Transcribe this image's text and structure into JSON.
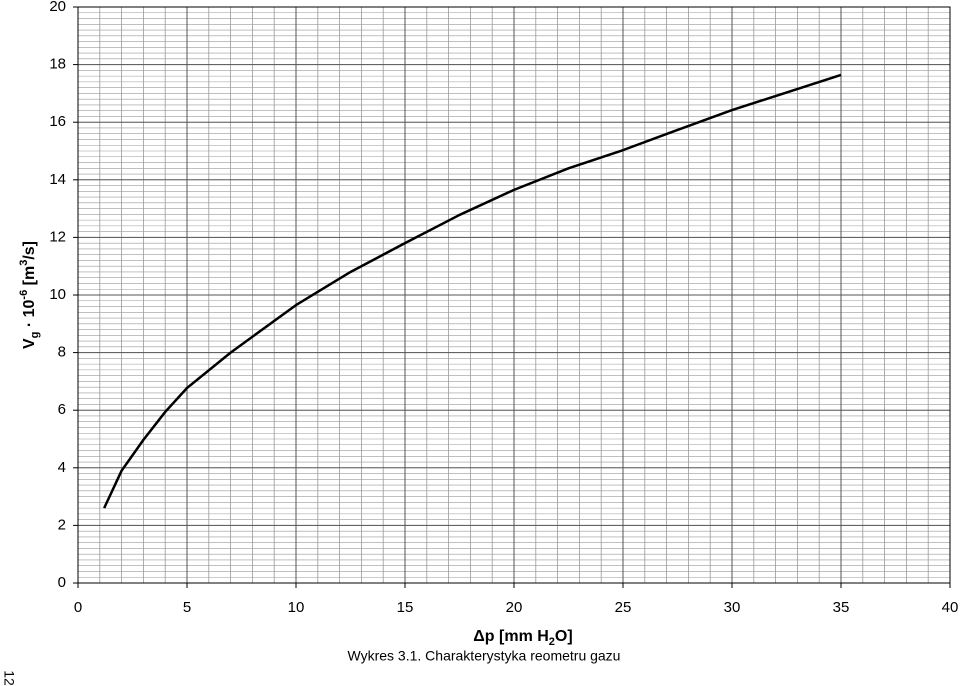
{
  "chart_data": {
    "type": "line",
    "x_label": [
      "Δp [mm H",
      "2",
      "O]"
    ],
    "y_label": [
      "V",
      "g",
      " · 10",
      "-6",
      " [m",
      "3",
      "/s]"
    ],
    "caption": "Wykres 3.1. Charakterystyka reometru gazu",
    "page_number": "12",
    "x": [
      1.2,
      2,
      3,
      4,
      5,
      7,
      10,
      12.5,
      15,
      17.5,
      20,
      22.5,
      25,
      27.5,
      30,
      35
    ],
    "series": [
      {
        "color": "#000000",
        "values": [
          2.6,
          3.9,
          4.97,
          5.94,
          6.77,
          8.0,
          9.65,
          10.8,
          11.8,
          12.78,
          13.65,
          14.4,
          15.03,
          15.73,
          16.42,
          17.64
        ]
      }
    ],
    "xlim": [
      0,
      40
    ],
    "xticks": [
      0,
      5,
      10,
      15,
      20,
      25,
      30,
      35,
      40
    ],
    "ylim": [
      0,
      20
    ],
    "yticks": [
      0,
      2,
      4,
      6,
      8,
      10,
      12,
      14,
      16,
      18,
      20
    ],
    "grid": true,
    "minor_grid": {
      "x_step": 1,
      "y_step": 0.2
    }
  }
}
